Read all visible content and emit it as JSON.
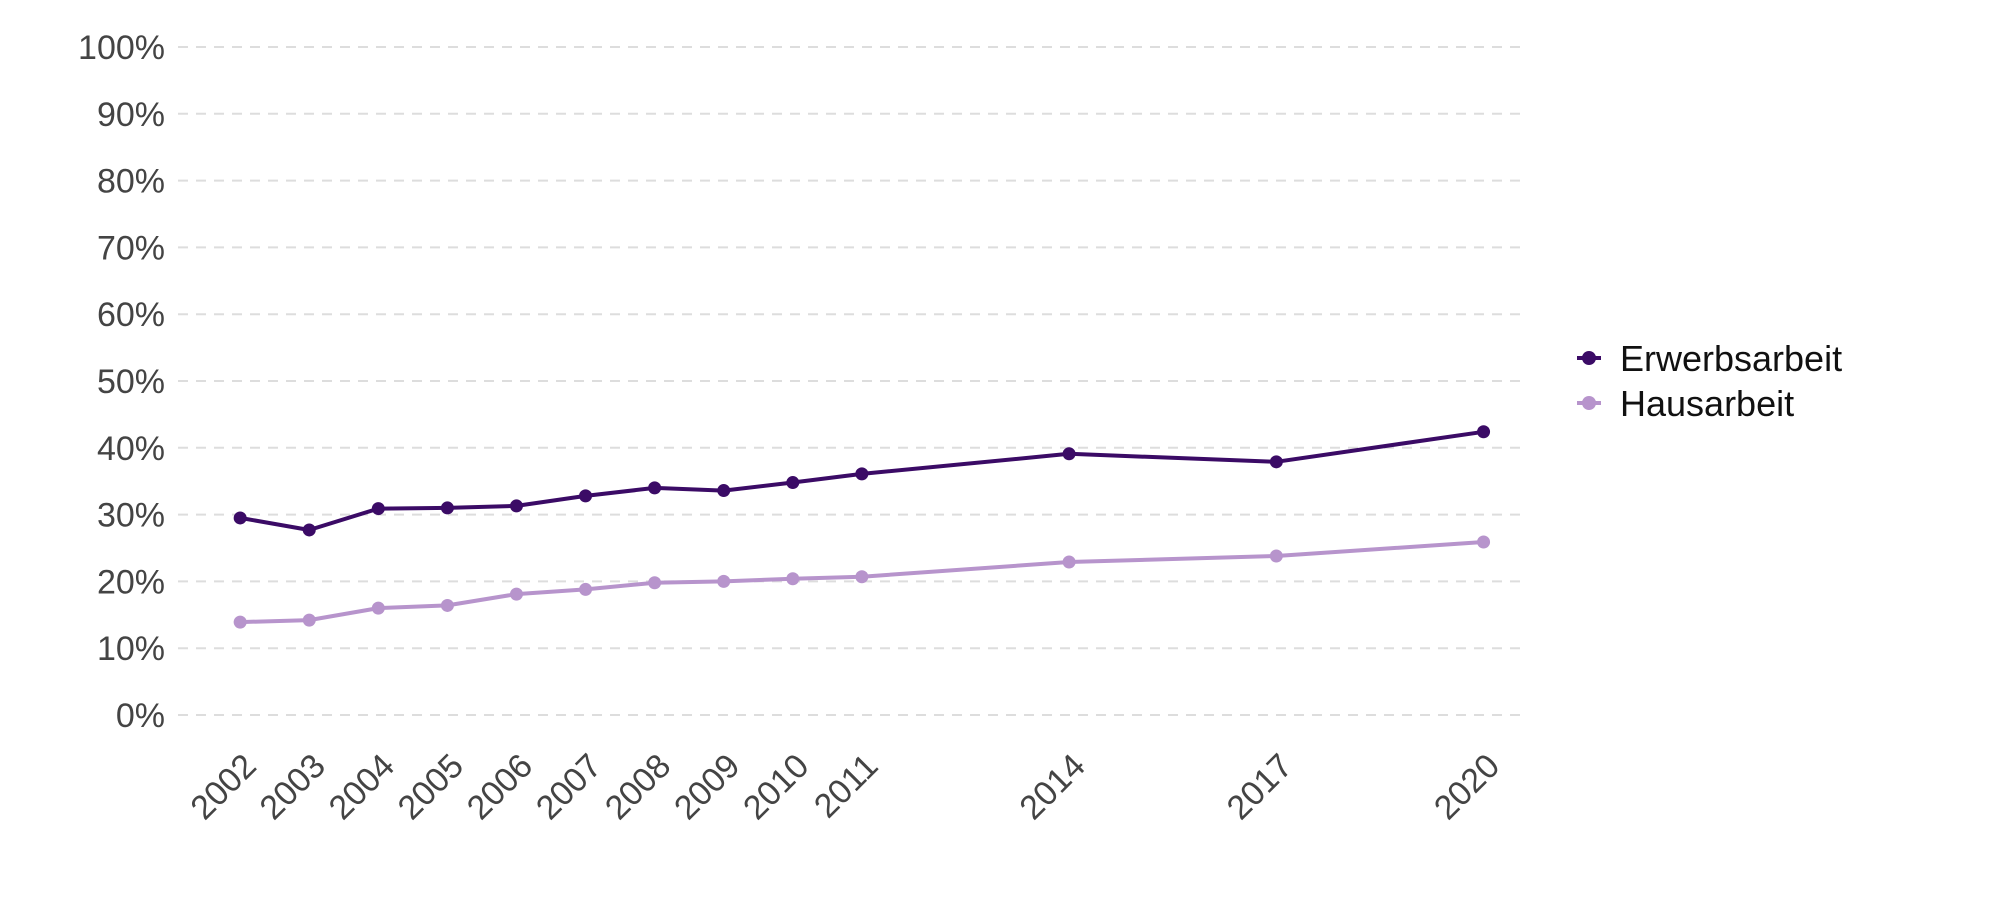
{
  "chart_data": {
    "type": "line",
    "x": [
      2002,
      2003,
      2004,
      2005,
      2006,
      2007,
      2008,
      2009,
      2010,
      2011,
      2014,
      2017,
      2020
    ],
    "xlim": [
      2001.1,
      2020.6
    ],
    "ylim": [
      0,
      100
    ],
    "yticks": [
      0,
      10,
      20,
      30,
      40,
      50,
      60,
      70,
      80,
      90,
      100
    ],
    "ytick_suffix": "%",
    "grid": true,
    "legend_position": "right",
    "series": [
      {
        "name": "Erwerbsarbeit",
        "color": "#3b0b66",
        "values": [
          29.5,
          27.7,
          30.9,
          31.0,
          31.3,
          32.8,
          34.0,
          33.6,
          34.8,
          36.1,
          39.1,
          37.9,
          42.4
        ]
      },
      {
        "name": "Hausarbeit",
        "color": "#b794cc",
        "values": [
          13.9,
          14.2,
          16.0,
          16.4,
          18.1,
          18.8,
          19.8,
          20.0,
          20.4,
          20.7,
          22.9,
          23.8,
          25.9
        ]
      }
    ]
  }
}
